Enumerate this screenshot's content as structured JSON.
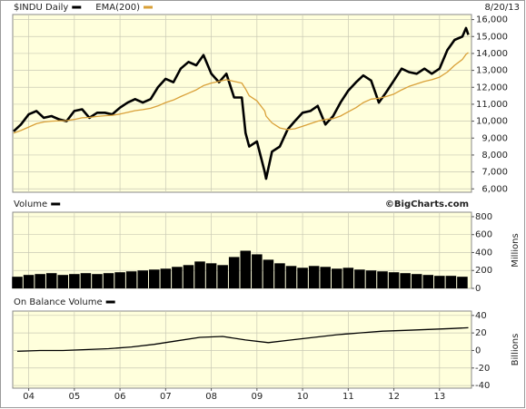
{
  "chart_data": [
    {
      "type": "line",
      "date_label": "8/20/13",
      "grid": true,
      "xlim": [
        2003.65,
        2013.7
      ],
      "ylim": [
        5800,
        16300
      ],
      "yticks": [
        {
          "value": 6000,
          "label": "6,000"
        },
        {
          "value": 7000,
          "label": "7,000"
        },
        {
          "value": 8000,
          "label": "8,000"
        },
        {
          "value": 9000,
          "label": "9,000"
        },
        {
          "value": 10000,
          "label": "10,000"
        },
        {
          "value": 11000,
          "label": "11,000"
        },
        {
          "value": 12000,
          "label": "12,000"
        },
        {
          "value": 13000,
          "label": "13,000"
        },
        {
          "value": 14000,
          "label": "14,000"
        },
        {
          "value": 15000,
          "label": "15,000"
        },
        {
          "value": 16000,
          "label": "16,000"
        }
      ],
      "x": [
        2003.67,
        2003.83,
        2004.0,
        2004.17,
        2004.33,
        2004.5,
        2004.67,
        2004.83,
        2005.0,
        2005.17,
        2005.33,
        2005.5,
        2005.67,
        2005.83,
        2006.0,
        2006.17,
        2006.33,
        2006.5,
        2006.67,
        2006.83,
        2007.0,
        2007.17,
        2007.33,
        2007.5,
        2007.67,
        2007.83,
        2008.0,
        2008.17,
        2008.33,
        2008.5,
        2008.67,
        2008.75,
        2008.83,
        2009.0,
        2009.17,
        2009.2,
        2009.33,
        2009.5,
        2009.67,
        2009.83,
        2010.0,
        2010.17,
        2010.33,
        2010.5,
        2010.67,
        2010.83,
        2011.0,
        2011.17,
        2011.33,
        2011.5,
        2011.67,
        2011.83,
        2012.0,
        2012.17,
        2012.33,
        2012.5,
        2012.67,
        2012.83,
        2013.0,
        2013.17,
        2013.33,
        2013.5,
        2013.58,
        2013.63
      ],
      "series": [
        {
          "name": "$INDU Daily",
          "color": "#000000",
          "values": [
            9400,
            9800,
            10400,
            10600,
            10200,
            10300,
            10100,
            10000,
            10600,
            10700,
            10200,
            10500,
            10500,
            10400,
            10800,
            11100,
            11300,
            11100,
            11300,
            12000,
            12500,
            12300,
            13100,
            13500,
            13300,
            13900,
            12800,
            12300,
            12800,
            11400,
            11400,
            9300,
            8500,
            8800,
            7000,
            6600,
            8200,
            8500,
            9500,
            10000,
            10500,
            10600,
            10900,
            9800,
            10300,
            11100,
            11800,
            12300,
            12700,
            12400,
            11100,
            11700,
            12400,
            13100,
            12900,
            12800,
            13100,
            12800,
            13100,
            14200,
            14800,
            15000,
            15500,
            15100
          ]
        },
        {
          "name": "EMA(200)",
          "color": "#d9a038",
          "values": [
            9300,
            9450,
            9650,
            9850,
            9950,
            10000,
            10020,
            10030,
            10100,
            10200,
            10220,
            10280,
            10320,
            10350,
            10420,
            10520,
            10620,
            10680,
            10760,
            10900,
            11100,
            11250,
            11450,
            11650,
            11850,
            12100,
            12250,
            12350,
            12450,
            12350,
            12250,
            11900,
            11500,
            11200,
            10600,
            10300,
            9900,
            9600,
            9500,
            9550,
            9700,
            9850,
            10000,
            10100,
            10150,
            10300,
            10550,
            10800,
            11100,
            11300,
            11350,
            11450,
            11600,
            11850,
            12050,
            12200,
            12350,
            12450,
            12600,
            12900,
            13300,
            13650,
            13950,
            14050
          ]
        }
      ]
    },
    {
      "type": "bar",
      "annotation": "©BigCharts.com",
      "ylabel": "Millions",
      "grid": true,
      "xlim": [
        2003.65,
        2013.7
      ],
      "ylim": [
        0,
        850
      ],
      "yticks": [
        0,
        200,
        400,
        600,
        800
      ],
      "x": [
        2003.75,
        2004.0,
        2004.25,
        2004.5,
        2004.75,
        2005.0,
        2005.25,
        2005.5,
        2005.75,
        2006.0,
        2006.25,
        2006.5,
        2006.75,
        2007.0,
        2007.25,
        2007.5,
        2007.75,
        2008.0,
        2008.25,
        2008.5,
        2008.75,
        2009.0,
        2009.25,
        2009.5,
        2009.75,
        2010.0,
        2010.25,
        2010.5,
        2010.75,
        2011.0,
        2011.25,
        2011.5,
        2011.75,
        2012.0,
        2012.25,
        2012.5,
        2012.75,
        2013.0,
        2013.25,
        2013.5
      ],
      "series": [
        {
          "name": "Volume",
          "color": "#000000",
          "values": [
            130,
            150,
            160,
            170,
            150,
            160,
            170,
            160,
            170,
            180,
            190,
            200,
            210,
            220,
            240,
            260,
            300,
            280,
            260,
            350,
            420,
            380,
            320,
            280,
            250,
            230,
            250,
            240,
            220,
            230,
            210,
            200,
            190,
            180,
            170,
            160,
            150,
            140,
            140,
            130
          ]
        }
      ]
    },
    {
      "type": "line",
      "ylabel": "Billions",
      "grid": true,
      "xlim": [
        2003.65,
        2013.7
      ],
      "ylim": [
        -43,
        45
      ],
      "yticks": [
        40,
        20,
        0,
        -20,
        -40
      ],
      "xticks": [
        {
          "value": 2004,
          "label": "04"
        },
        {
          "value": 2005,
          "label": "05"
        },
        {
          "value": 2006,
          "label": "06"
        },
        {
          "value": 2007,
          "label": "07"
        },
        {
          "value": 2008,
          "label": "08"
        },
        {
          "value": 2009,
          "label": "09"
        },
        {
          "value": 2010,
          "label": "10"
        },
        {
          "value": 2011,
          "label": "11"
        },
        {
          "value": 2012,
          "label": "12"
        },
        {
          "value": 2013,
          "label": "13"
        }
      ],
      "x": [
        2003.75,
        2004.25,
        2004.75,
        2005.25,
        2005.75,
        2006.25,
        2006.75,
        2007.25,
        2007.75,
        2008.25,
        2008.75,
        2009.25,
        2009.75,
        2010.25,
        2010.75,
        2011.25,
        2011.75,
        2012.25,
        2012.75,
        2013.25,
        2013.63
      ],
      "series": [
        {
          "name": "On Balance Volume",
          "color": "#000000",
          "values": [
            -1,
            0,
            0,
            1,
            2,
            4,
            7,
            11,
            15,
            16,
            12,
            9,
            12,
            15,
            18,
            20,
            22,
            23,
            24,
            25,
            26
          ]
        }
      ]
    }
  ]
}
